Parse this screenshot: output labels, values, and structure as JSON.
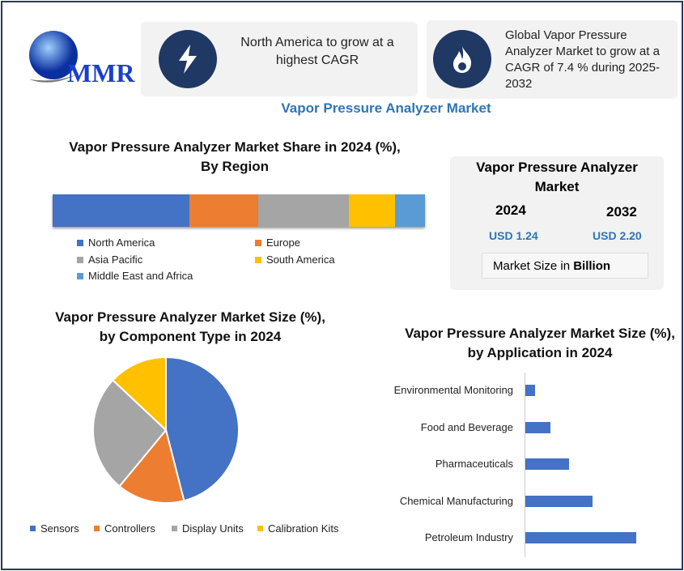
{
  "logo": {
    "text": "MMR"
  },
  "info_cards": [
    {
      "icon": "lightning-icon",
      "text": "North America to grow at a highest CAGR"
    },
    {
      "icon": "flame-icon",
      "text": "Global Vapor Pressure Analyzer Market to grow at a CAGR of 7.4 % during 2025-2032"
    }
  ],
  "main_title": "Vapor Pressure Analyzer Market",
  "market_box": {
    "title": "Vapor Pressure Analyzer Market",
    "year1": "2024",
    "value1": "USD 1.24",
    "year2": "2032",
    "value2": "USD 2.20",
    "unit_prefix": "Market Size in ",
    "unit_bold": "Billion"
  },
  "colors": {
    "blue": "#4472c4",
    "orange": "#ed7d31",
    "gray": "#a5a5a5",
    "yellow": "#ffc000",
    "lightblue": "#5b9bd5",
    "title_blue": "#2e75b6"
  },
  "chart_data": [
    {
      "type": "bar",
      "orientation": "horizontal-stacked",
      "title": "Vapor Pressure Analyzer Market Share in 2024 (%), By Region",
      "series": [
        {
          "name": "North America",
          "values": [
            36.7
          ]
        },
        {
          "name": "Europe",
          "values": [
            18.5
          ]
        },
        {
          "name": "Asia Pacific",
          "values": [
            24.3
          ]
        },
        {
          "name": "South America",
          "values": [
            12.4
          ]
        },
        {
          "name": "Middle East and Africa",
          "values": [
            8.1
          ]
        }
      ],
      "legend": "bottom"
    },
    {
      "type": "pie",
      "title": "Vapor Pressure Analyzer Market Size (%), by Component Type in 2024",
      "categories": [
        "Sensors",
        "Controllers",
        "Display Units",
        "Calibration Kits"
      ],
      "values": [
        46,
        15,
        26,
        13
      ],
      "legend": "bottom"
    },
    {
      "type": "bar",
      "orientation": "horizontal",
      "title": "Vapor Pressure Analyzer Market Size (%), by Application in 2024",
      "categories": [
        "Environmental Monitoring",
        "Food and Beverage",
        "Pharmaceuticals",
        "Chemical Manufacturing",
        "Petroleum Industry"
      ],
      "values": [
        3.7,
        9.6,
        16.7,
        25.7,
        42.3
      ]
    }
  ]
}
